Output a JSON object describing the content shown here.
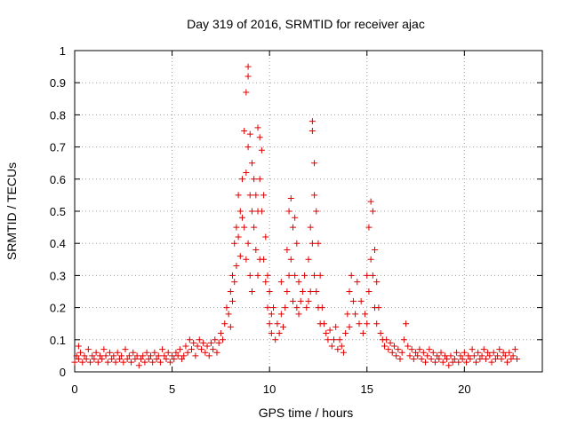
{
  "chart_data": {
    "type": "scatter",
    "title": "Day 319 of 2016, SRMTID for receiver ajac",
    "xlabel": "GPS time / hours",
    "ylabel": "SRMTID / TECUs",
    "xlim": [
      0,
      24
    ],
    "ylim": [
      0,
      1
    ],
    "xticks": [
      0,
      5,
      10,
      15,
      20
    ],
    "xtick_labels": [
      "0",
      "5",
      "10",
      "15",
      "20"
    ],
    "yticks": [
      0,
      0.1,
      0.2,
      0.3,
      0.4,
      0.5,
      0.6,
      0.7,
      0.8,
      0.9,
      1
    ],
    "ytick_labels": [
      "0",
      "0.1",
      "0.2",
      "0.3",
      "0.4",
      "0.5",
      "0.6",
      "0.7",
      "0.8",
      "0.9",
      "1"
    ],
    "grid": true,
    "marker": "+",
    "marker_color": "#e00000",
    "series": [
      {
        "name": "SRMTID",
        "points": [
          [
            0.0,
            0.03
          ],
          [
            0.1,
            0.05
          ],
          [
            0.2,
            0.08
          ],
          [
            0.2,
            0.04
          ],
          [
            0.3,
            0.06
          ],
          [
            0.4,
            0.03
          ],
          [
            0.5,
            0.05
          ],
          [
            0.6,
            0.04
          ],
          [
            0.7,
            0.07
          ],
          [
            0.8,
            0.03
          ],
          [
            0.9,
            0.05
          ],
          [
            1.0,
            0.04
          ],
          [
            1.1,
            0.06
          ],
          [
            1.2,
            0.03
          ],
          [
            1.3,
            0.05
          ],
          [
            1.4,
            0.04
          ],
          [
            1.5,
            0.07
          ],
          [
            1.6,
            0.05
          ],
          [
            1.7,
            0.03
          ],
          [
            1.8,
            0.06
          ],
          [
            1.9,
            0.04
          ],
          [
            2.0,
            0.05
          ],
          [
            2.1,
            0.03
          ],
          [
            2.2,
            0.06
          ],
          [
            2.3,
            0.04
          ],
          [
            2.4,
            0.05
          ],
          [
            2.5,
            0.03
          ],
          [
            2.6,
            0.07
          ],
          [
            2.7,
            0.04
          ],
          [
            2.8,
            0.05
          ],
          [
            2.9,
            0.03
          ],
          [
            3.0,
            0.06
          ],
          [
            3.1,
            0.04
          ],
          [
            3.2,
            0.05
          ],
          [
            3.3,
            0.02
          ],
          [
            3.4,
            0.04
          ],
          [
            3.5,
            0.05
          ],
          [
            3.6,
            0.03
          ],
          [
            3.7,
            0.06
          ],
          [
            3.8,
            0.04
          ],
          [
            3.9,
            0.05
          ],
          [
            4.0,
            0.03
          ],
          [
            4.1,
            0.06
          ],
          [
            4.2,
            0.04
          ],
          [
            4.3,
            0.05
          ],
          [
            4.4,
            0.03
          ],
          [
            4.5,
            0.07
          ],
          [
            4.6,
            0.05
          ],
          [
            4.7,
            0.04
          ],
          [
            4.8,
            0.06
          ],
          [
            4.9,
            0.03
          ],
          [
            5.0,
            0.05
          ],
          [
            5.1,
            0.04
          ],
          [
            5.2,
            0.06
          ],
          [
            5.3,
            0.05
          ],
          [
            5.4,
            0.07
          ],
          [
            5.5,
            0.04
          ],
          [
            5.6,
            0.05
          ],
          [
            5.7,
            0.08
          ],
          [
            5.8,
            0.06
          ],
          [
            5.9,
            0.1
          ],
          [
            6.0,
            0.07
          ],
          [
            6.1,
            0.09
          ],
          [
            6.2,
            0.05
          ],
          [
            6.3,
            0.08
          ],
          [
            6.4,
            0.1
          ],
          [
            6.5,
            0.07
          ],
          [
            6.6,
            0.09
          ],
          [
            6.7,
            0.06
          ],
          [
            6.8,
            0.08
          ],
          [
            6.9,
            0.05
          ],
          [
            7.0,
            0.09
          ],
          [
            7.1,
            0.07
          ],
          [
            7.2,
            0.1
          ],
          [
            7.3,
            0.06
          ],
          [
            7.4,
            0.09
          ],
          [
            7.5,
            0.12
          ],
          [
            7.6,
            0.1
          ],
          [
            7.7,
            0.15
          ],
          [
            7.8,
            0.2
          ],
          [
            7.9,
            0.18
          ],
          [
            8.0,
            0.25
          ],
          [
            8.0,
            0.14
          ],
          [
            8.1,
            0.3
          ],
          [
            8.1,
            0.22
          ],
          [
            8.2,
            0.4
          ],
          [
            8.2,
            0.28
          ],
          [
            8.3,
            0.45
          ],
          [
            8.3,
            0.33
          ],
          [
            8.4,
            0.55
          ],
          [
            8.4,
            0.42
          ],
          [
            8.5,
            0.5
          ],
          [
            8.5,
            0.36
          ],
          [
            8.6,
            0.6
          ],
          [
            8.6,
            0.48
          ],
          [
            8.7,
            0.75
          ],
          [
            8.7,
            0.45
          ],
          [
            8.8,
            0.87
          ],
          [
            8.8,
            0.62
          ],
          [
            8.8,
            0.35
          ],
          [
            8.9,
            0.95
          ],
          [
            8.9,
            0.92
          ],
          [
            8.9,
            0.7
          ],
          [
            8.9,
            0.4
          ],
          [
            9.0,
            0.74
          ],
          [
            9.0,
            0.55
          ],
          [
            9.0,
            0.3
          ],
          [
            9.1,
            0.65
          ],
          [
            9.1,
            0.5
          ],
          [
            9.1,
            0.25
          ],
          [
            9.2,
            0.6
          ],
          [
            9.2,
            0.45
          ],
          [
            9.3,
            0.55
          ],
          [
            9.3,
            0.38
          ],
          [
            9.4,
            0.76
          ],
          [
            9.4,
            0.5
          ],
          [
            9.4,
            0.3
          ],
          [
            9.5,
            0.73
          ],
          [
            9.5,
            0.6
          ],
          [
            9.5,
            0.35
          ],
          [
            9.6,
            0.69
          ],
          [
            9.6,
            0.5
          ],
          [
            9.7,
            0.55
          ],
          [
            9.7,
            0.35
          ],
          [
            9.8,
            0.42
          ],
          [
            9.8,
            0.28
          ],
          [
            9.9,
            0.3
          ],
          [
            9.9,
            0.2
          ],
          [
            10.0,
            0.25
          ],
          [
            10.0,
            0.15
          ],
          [
            10.1,
            0.18
          ],
          [
            10.1,
            0.12
          ],
          [
            10.2,
            0.2
          ],
          [
            10.3,
            0.1
          ],
          [
            10.4,
            0.15
          ],
          [
            10.5,
            0.12
          ],
          [
            10.6,
            0.28
          ],
          [
            10.6,
            0.18
          ],
          [
            10.7,
            0.14
          ],
          [
            10.8,
            0.2
          ],
          [
            10.9,
            0.38
          ],
          [
            10.9,
            0.25
          ],
          [
            11.0,
            0.5
          ],
          [
            11.0,
            0.3
          ],
          [
            11.1,
            0.54
          ],
          [
            11.1,
            0.35
          ],
          [
            11.2,
            0.45
          ],
          [
            11.2,
            0.22
          ],
          [
            11.3,
            0.48
          ],
          [
            11.3,
            0.3
          ],
          [
            11.4,
            0.4
          ],
          [
            11.4,
            0.2
          ],
          [
            11.5,
            0.28
          ],
          [
            11.5,
            0.18
          ],
          [
            11.6,
            0.22
          ],
          [
            11.7,
            0.25
          ],
          [
            11.8,
            0.3
          ],
          [
            11.9,
            0.2
          ],
          [
            12.0,
            0.35
          ],
          [
            12.0,
            0.22
          ],
          [
            12.1,
            0.45
          ],
          [
            12.1,
            0.25
          ],
          [
            12.2,
            0.78
          ],
          [
            12.2,
            0.75
          ],
          [
            12.2,
            0.4
          ],
          [
            12.3,
            0.65
          ],
          [
            12.3,
            0.55
          ],
          [
            12.3,
            0.3
          ],
          [
            12.4,
            0.5
          ],
          [
            12.4,
            0.25
          ],
          [
            12.5,
            0.4
          ],
          [
            12.5,
            0.2
          ],
          [
            12.6,
            0.3
          ],
          [
            12.6,
            0.15
          ],
          [
            12.7,
            0.2
          ],
          [
            12.8,
            0.15
          ],
          [
            12.9,
            0.12
          ],
          [
            13.0,
            0.1
          ],
          [
            13.1,
            0.13
          ],
          [
            13.2,
            0.08
          ],
          [
            13.3,
            0.1
          ],
          [
            13.4,
            0.14
          ],
          [
            13.5,
            0.07
          ],
          [
            13.6,
            0.1
          ],
          [
            13.7,
            0.08
          ],
          [
            13.8,
            0.06
          ],
          [
            13.9,
            0.12
          ],
          [
            14.0,
            0.18
          ],
          [
            14.1,
            0.25
          ],
          [
            14.1,
            0.14
          ],
          [
            14.2,
            0.3
          ],
          [
            14.3,
            0.22
          ],
          [
            14.4,
            0.18
          ],
          [
            14.5,
            0.28
          ],
          [
            14.6,
            0.15
          ],
          [
            14.7,
            0.22
          ],
          [
            14.8,
            0.12
          ],
          [
            14.9,
            0.18
          ],
          [
            15.0,
            0.3
          ],
          [
            15.0,
            0.15
          ],
          [
            15.1,
            0.45
          ],
          [
            15.1,
            0.25
          ],
          [
            15.2,
            0.53
          ],
          [
            15.2,
            0.35
          ],
          [
            15.3,
            0.5
          ],
          [
            15.3,
            0.3
          ],
          [
            15.4,
            0.38
          ],
          [
            15.4,
            0.2
          ],
          [
            15.5,
            0.28
          ],
          [
            15.5,
            0.15
          ],
          [
            15.6,
            0.2
          ],
          [
            15.7,
            0.12
          ],
          [
            15.8,
            0.1
          ],
          [
            15.9,
            0.08
          ],
          [
            16.0,
            0.1
          ],
          [
            16.1,
            0.07
          ],
          [
            16.2,
            0.09
          ],
          [
            16.3,
            0.06
          ],
          [
            16.4,
            0.08
          ],
          [
            16.5,
            0.05
          ],
          [
            16.6,
            0.07
          ],
          [
            16.7,
            0.04
          ],
          [
            16.8,
            0.06
          ],
          [
            16.9,
            0.1
          ],
          [
            17.0,
            0.15
          ],
          [
            17.1,
            0.08
          ],
          [
            17.2,
            0.05
          ],
          [
            17.3,
            0.07
          ],
          [
            17.4,
            0.04
          ],
          [
            17.5,
            0.06
          ],
          [
            17.6,
            0.05
          ],
          [
            17.7,
            0.07
          ],
          [
            17.8,
            0.04
          ],
          [
            17.9,
            0.06
          ],
          [
            18.0,
            0.03
          ],
          [
            18.1,
            0.05
          ],
          [
            18.2,
            0.07
          ],
          [
            18.3,
            0.04
          ],
          [
            18.4,
            0.06
          ],
          [
            18.5,
            0.03
          ],
          [
            18.6,
            0.05
          ],
          [
            18.7,
            0.04
          ],
          [
            18.8,
            0.06
          ],
          [
            18.9,
            0.03
          ],
          [
            19.0,
            0.05
          ],
          [
            19.1,
            0.04
          ],
          [
            19.2,
            0.02
          ],
          [
            19.3,
            0.05
          ],
          [
            19.4,
            0.03
          ],
          [
            19.5,
            0.04
          ],
          [
            19.6,
            0.06
          ],
          [
            19.7,
            0.03
          ],
          [
            19.8,
            0.05
          ],
          [
            19.9,
            0.04
          ],
          [
            20.0,
            0.06
          ],
          [
            20.1,
            0.03
          ],
          [
            20.2,
            0.05
          ],
          [
            20.3,
            0.04
          ],
          [
            20.4,
            0.07
          ],
          [
            20.5,
            0.05
          ],
          [
            20.6,
            0.03
          ],
          [
            20.7,
            0.06
          ],
          [
            20.8,
            0.04
          ],
          [
            20.9,
            0.05
          ],
          [
            21.0,
            0.07
          ],
          [
            21.1,
            0.04
          ],
          [
            21.2,
            0.06
          ],
          [
            21.3,
            0.05
          ],
          [
            21.4,
            0.03
          ],
          [
            21.5,
            0.06
          ],
          [
            21.6,
            0.04
          ],
          [
            21.7,
            0.05
          ],
          [
            21.8,
            0.07
          ],
          [
            21.9,
            0.04
          ],
          [
            22.0,
            0.06
          ],
          [
            22.1,
            0.05
          ],
          [
            22.2,
            0.03
          ],
          [
            22.3,
            0.06
          ],
          [
            22.4,
            0.04
          ],
          [
            22.5,
            0.05
          ],
          [
            22.6,
            0.07
          ],
          [
            22.7,
            0.04
          ]
        ]
      }
    ]
  }
}
